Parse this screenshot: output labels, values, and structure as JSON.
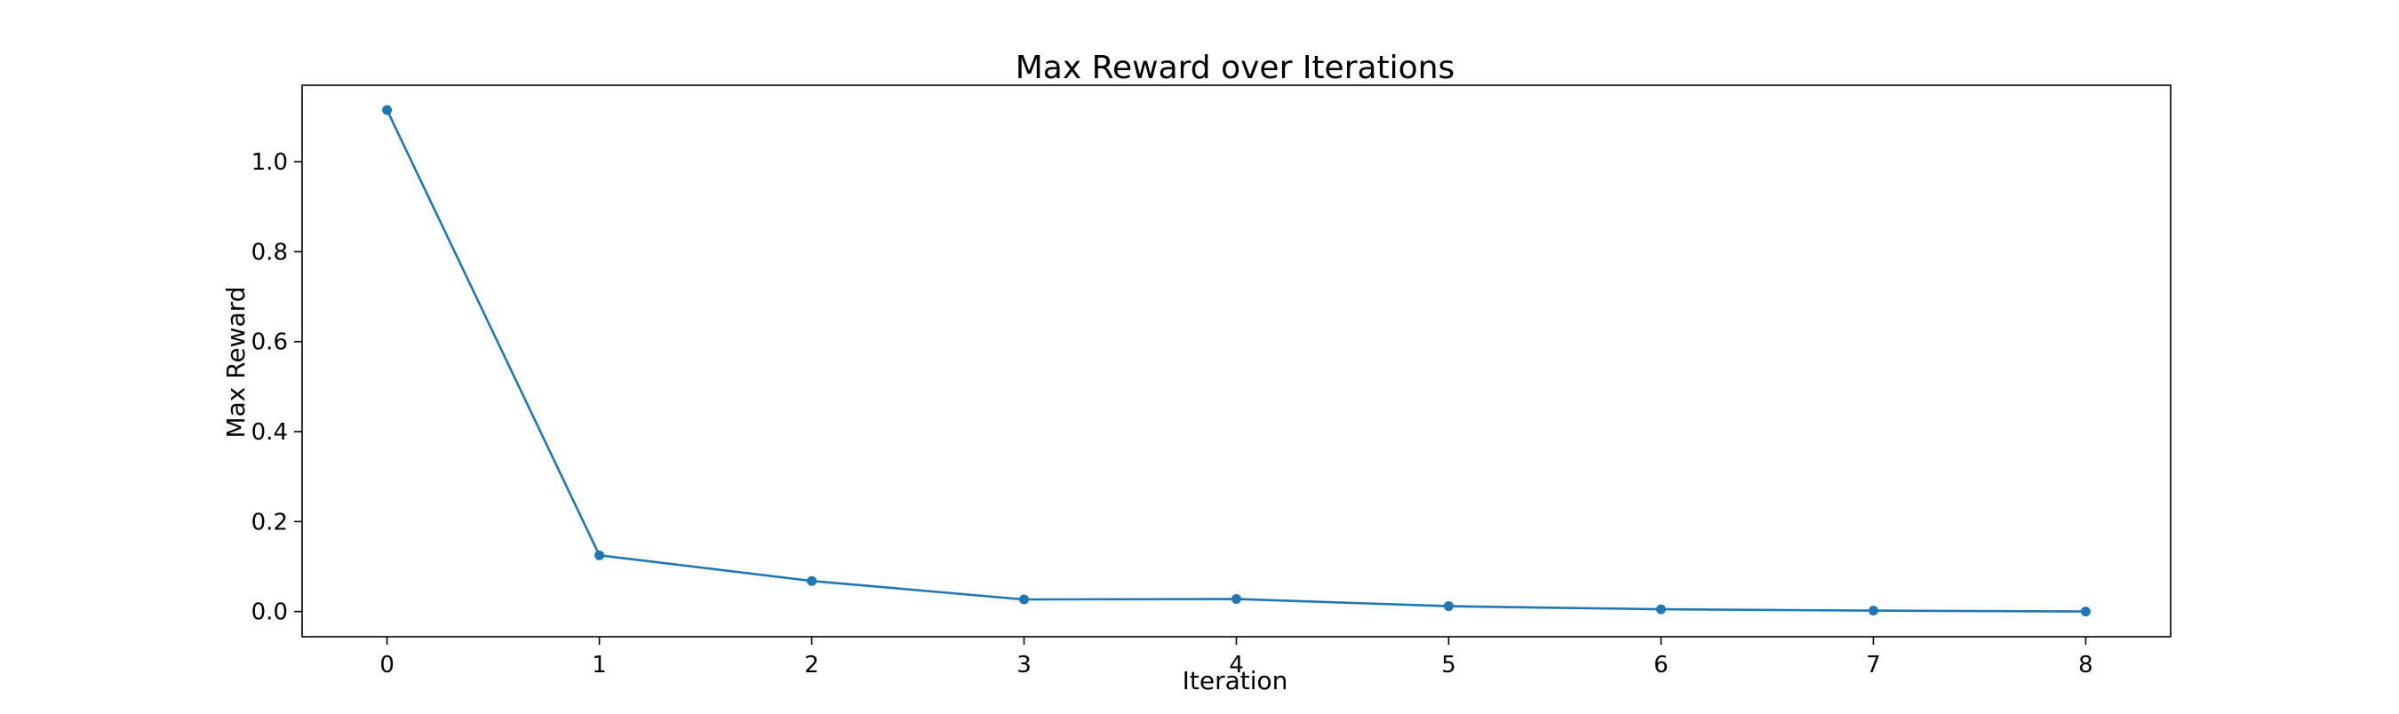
{
  "colors": {
    "series": "#1f77b4",
    "axes": "#000000",
    "background": "#ffffff"
  },
  "chart_data": {
    "type": "line",
    "title": "Max Reward over Iterations",
    "xlabel": "Iteration",
    "ylabel": "Max Reward",
    "grid": false,
    "legend": "none",
    "xlim": [
      -0.4,
      8.4
    ],
    "ylim": [
      -0.056,
      1.17
    ],
    "xticks": [
      0,
      1,
      2,
      3,
      4,
      5,
      6,
      7,
      8
    ],
    "xtick_labels": [
      "0",
      "1",
      "2",
      "3",
      "4",
      "5",
      "6",
      "7",
      "8"
    ],
    "yticks": [
      0.0,
      0.2,
      0.4,
      0.6,
      0.8,
      1.0
    ],
    "ytick_labels": [
      "0.0",
      "0.2",
      "0.4",
      "0.6",
      "0.8",
      "1.0"
    ],
    "series": [
      {
        "name": "Max Reward",
        "marker": "circle",
        "x": [
          0,
          1,
          2,
          3,
          4,
          5,
          6,
          7,
          8
        ],
        "values": [
          1.115,
          0.125,
          0.068,
          0.027,
          0.028,
          0.012,
          0.005,
          0.002,
          0.0
        ]
      }
    ]
  }
}
